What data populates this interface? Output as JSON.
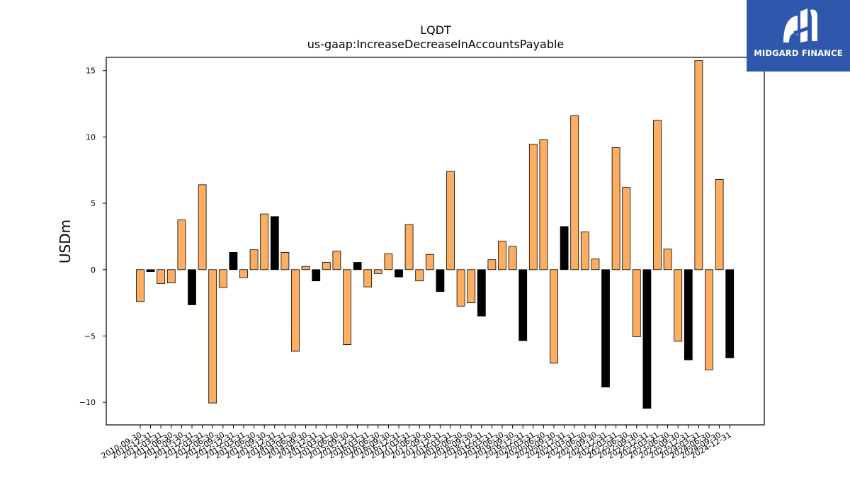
{
  "chart_data": {
    "type": "bar",
    "title": "LQDT",
    "subtitle": "us-gaap:IncreaseDecreaseInAccountsPayable",
    "xlabel": "",
    "ylabel": "USDm",
    "ylim": [
      -11.7,
      16
    ],
    "yticks": [
      -10,
      -5,
      0,
      5,
      10,
      15
    ],
    "ytick_labels": [
      "−10",
      "−5",
      "0",
      "5",
      "10",
      "15"
    ],
    "grid": false,
    "legend": "none",
    "colors": {
      "orange": "#fdae61",
      "black": "#000000",
      "edge": "#000000"
    },
    "categories": [
      "2010-09-30",
      "2010-12-31",
      "2011-03-31",
      "2011-06-30",
      "2011-09-30",
      "2011-12-31",
      "2012-03-31",
      "2012-06-30",
      "2012-09-30",
      "2012-12-31",
      "2013-03-31",
      "2013-06-30",
      "2013-09-30",
      "2013-12-31",
      "2014-03-31",
      "2014-06-30",
      "2014-09-30",
      "2014-12-31",
      "2015-03-31",
      "2015-06-30",
      "2015-09-30",
      "2015-12-31",
      "2016-03-31",
      "2016-06-30",
      "2016-09-30",
      "2016-12-31",
      "2017-03-31",
      "2017-06-30",
      "2017-09-30",
      "2017-12-31",
      "2018-03-31",
      "2018-06-30",
      "2018-09-30",
      "2018-12-31",
      "2019-03-31",
      "2019-06-30",
      "2019-09-30",
      "2019-12-31",
      "2020-03-31",
      "2020-06-30",
      "2020-09-30",
      "2020-12-31",
      "2021-03-31",
      "2021-06-30",
      "2021-09-30",
      "2021-12-31",
      "2022-03-31",
      "2022-06-30",
      "2022-09-30",
      "2022-12-31",
      "2023-03-31",
      "2023-06-30",
      "2023-09-30",
      "2023-12-31",
      "2024-03-31",
      "2024-06-30",
      "2024-09-30",
      "2024-12-31"
    ],
    "values": [
      -2.4,
      -0.15,
      -1.05,
      -1.0,
      3.75,
      -2.65,
      6.4,
      -10.05,
      -1.35,
      1.3,
      -0.6,
      1.5,
      4.2,
      4.0,
      1.3,
      -6.15,
      0.25,
      -0.85,
      0.55,
      1.4,
      -5.65,
      0.55,
      -1.3,
      -0.3,
      1.2,
      -0.55,
      3.4,
      -0.85,
      1.15,
      -1.65,
      7.4,
      -2.75,
      -2.5,
      -3.5,
      0.75,
      2.15,
      1.75,
      -5.35,
      9.45,
      9.8,
      -7.05,
      3.25,
      11.6,
      2.85,
      0.8,
      -8.85,
      9.2,
      6.2,
      -5.05,
      -10.45,
      11.25,
      1.55,
      -5.4,
      -6.8,
      15.75,
      -7.55,
      6.8,
      -6.65
    ],
    "bar_colors": [
      "orange",
      "black",
      "orange",
      "orange",
      "orange",
      "black",
      "orange",
      "orange",
      "orange",
      "black",
      "orange",
      "orange",
      "orange",
      "black",
      "orange",
      "orange",
      "orange",
      "black",
      "orange",
      "orange",
      "orange",
      "black",
      "orange",
      "orange",
      "orange",
      "black",
      "orange",
      "orange",
      "orange",
      "black",
      "orange",
      "orange",
      "orange",
      "black",
      "orange",
      "orange",
      "orange",
      "black",
      "orange",
      "orange",
      "orange",
      "black",
      "orange",
      "orange",
      "orange",
      "black",
      "orange",
      "orange",
      "orange",
      "black",
      "orange",
      "orange",
      "orange",
      "black",
      "orange",
      "orange",
      "orange",
      "black"
    ]
  },
  "logo": {
    "text": "MIDGARD FINANCE",
    "icon": "midgard-m-logo-icon",
    "background": "#2f58ad"
  }
}
